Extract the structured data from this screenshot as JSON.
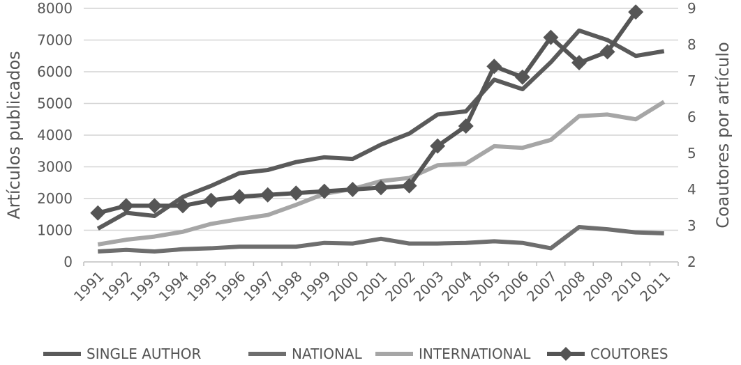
{
  "chart_data": {
    "type": "line",
    "categories": [
      "1991",
      "1992",
      "1993",
      "1994",
      "1995",
      "1996",
      "1997",
      "1998",
      "1999",
      "2000",
      "2001",
      "2002",
      "2003",
      "2004",
      "2005",
      "2006",
      "2007",
      "2008",
      "2009",
      "2010",
      "2011"
    ],
    "ylabel": "Artículos publicados",
    "ylim": [
      0,
      8000
    ],
    "yticks": [
      "0",
      "1000",
      "2000",
      "3000",
      "4000",
      "5000",
      "6000",
      "7000",
      "8000"
    ],
    "y2label": "Coautores por artículo",
    "y2lim": [
      2,
      9
    ],
    "y2ticks": [
      "2",
      "3",
      "4",
      "5",
      "6",
      "7",
      "8",
      "9"
    ],
    "grid": true,
    "legend_position": "bottom",
    "series": [
      {
        "name": "SINGLE AUTHOR",
        "axis": "left",
        "color": "#5a5a5a",
        "marker": "none",
        "values": [
          1050,
          1550,
          1450,
          2050,
          2400,
          2800,
          2900,
          3150,
          3300,
          3250,
          3700,
          4050,
          4650,
          4750,
          5750,
          5450,
          6300,
          7300,
          7000,
          6500,
          6650
        ]
      },
      {
        "name": "NATIONAL",
        "axis": "left",
        "color": "#6e6e6e",
        "marker": "none",
        "values": [
          330,
          380,
          330,
          400,
          430,
          480,
          480,
          480,
          600,
          580,
          730,
          580,
          580,
          600,
          650,
          600,
          430,
          1100,
          1030,
          930,
          900
        ]
      },
      {
        "name": "INTERNATIONAL",
        "axis": "left",
        "color": "#a6a6a6",
        "marker": "none",
        "values": [
          550,
          700,
          800,
          950,
          1200,
          1350,
          1480,
          1800,
          2150,
          2300,
          2550,
          2650,
          3050,
          3100,
          3650,
          3600,
          3850,
          4600,
          4650,
          4500,
          5050
        ]
      },
      {
        "name": "COUTORES",
        "axis": "right",
        "color": "#555555",
        "marker": "diamond",
        "values": [
          3.35,
          3.55,
          3.55,
          3.55,
          3.7,
          3.8,
          3.85,
          3.9,
          3.95,
          4.0,
          4.05,
          4.1,
          5.2,
          5.75,
          7.4,
          7.1,
          8.2,
          7.5,
          7.8,
          8.9,
          null
        ]
      }
    ]
  }
}
